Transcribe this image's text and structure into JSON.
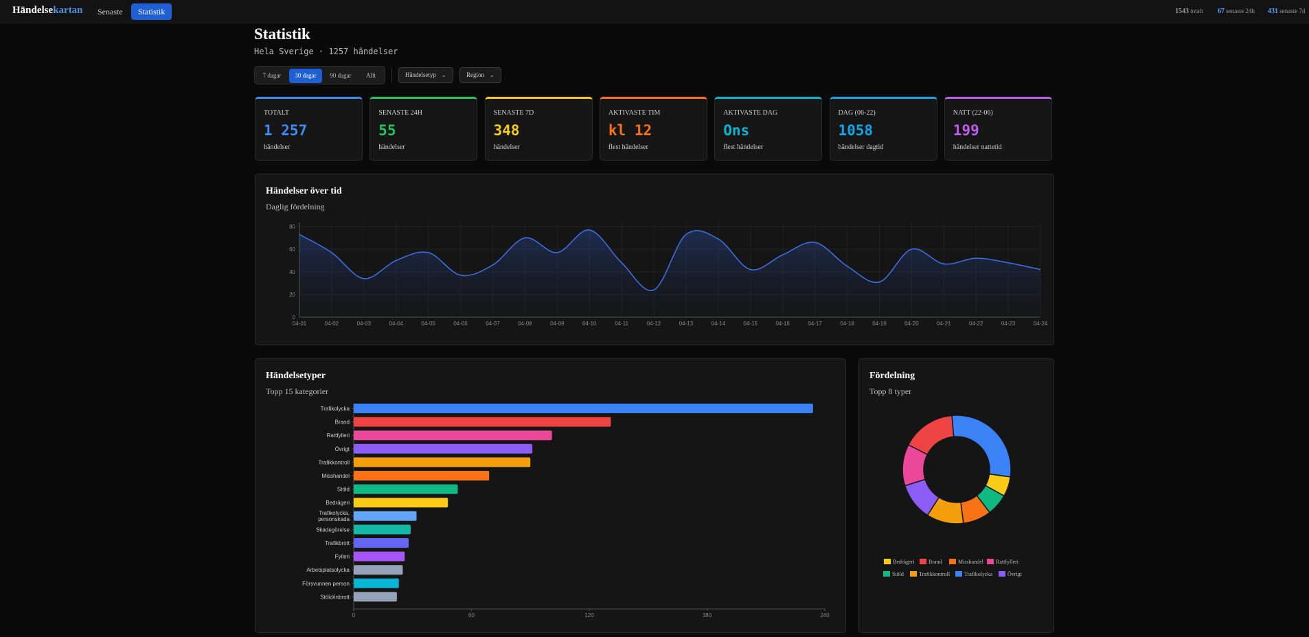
{
  "brand": {
    "part1": "Händelse",
    "part2": "kartan"
  },
  "nav": {
    "recent": "Senaste",
    "stats": "Statistik"
  },
  "topstats": [
    {
      "value": "1543",
      "label": "totalt",
      "color": "#ffffff"
    },
    {
      "value": "67",
      "label": "senaste 24h",
      "color": "#5aa2ff"
    },
    {
      "value": "431",
      "label": "senaste 7d",
      "color": "#5aa2ff"
    }
  ],
  "page": {
    "title": "Statistik",
    "subtitle": "Hela Sverige · 1257 händelser"
  },
  "filters": {
    "periods": [
      "7 dagar",
      "30 dagar",
      "90 dagar",
      "Allt"
    ],
    "active_period": "30 dagar",
    "type_dropdown": "Händelsetyp",
    "region_dropdown": "Region"
  },
  "cards": [
    {
      "label": "TOTALT",
      "value": "1 257",
      "sub": "händelser",
      "color": "#3b8cf5"
    },
    {
      "label": "SENASTE 24H",
      "value": "55",
      "sub": "händelser",
      "color": "#22c55e"
    },
    {
      "label": "SENASTE 7D",
      "value": "348",
      "sub": "händelser",
      "color": "#facc15"
    },
    {
      "label": "AKTIVASTE TIM",
      "value": "kl 12",
      "sub": "flest händelser",
      "color": "#f97316"
    },
    {
      "label": "AKTIVASTE DAG",
      "value": "Ons",
      "sub": "flest händelser",
      "color": "#06b6d4"
    },
    {
      "label": "DAG (06-22)",
      "value": "1058",
      "sub": "händelser dagtid",
      "color": "#0ea5e9"
    },
    {
      "label": "NATT (22-06)",
      "value": "199",
      "sub": "händelser nattetid",
      "color": "#c05cf0"
    }
  ],
  "timeline": {
    "title": "Händelser över tid",
    "subtitle": "Daglig fördelning"
  },
  "types": {
    "title": "Händelsetyper",
    "subtitle": "Topp 15 kategorier"
  },
  "distribution": {
    "title": "Fördelning",
    "subtitle": "Topp 8 typer"
  },
  "chart_data": [
    {
      "type": "area",
      "x": [
        "04-01",
        "04-02",
        "04-03",
        "04-04",
        "04-05",
        "04-06",
        "04-07",
        "04-08",
        "04-09",
        "04-10",
        "04-11",
        "04-12",
        "04-13",
        "04-14",
        "04-15",
        "04-16",
        "04-17",
        "04-18",
        "04-19",
        "04-20",
        "04-21",
        "04-22",
        "04-23",
        "04-24"
      ],
      "values": [
        73,
        57,
        34,
        50,
        57,
        37,
        46,
        70,
        57,
        77,
        48,
        24,
        73,
        69,
        42,
        55,
        66,
        45,
        31,
        60,
        47,
        52,
        48,
        42
      ],
      "ylim": [
        0,
        80
      ],
      "yticks": [
        0,
        20,
        40,
        60,
        80
      ],
      "color": "#3b6fe0",
      "grid": true
    },
    {
      "type": "bar",
      "orientation": "horizontal",
      "categories": [
        "Trafikolycka",
        "Brand",
        "Rattfylleri",
        "Övrigt",
        "Trafikkontroll",
        "Misshandel",
        "Stöld",
        "Bedrägeri",
        "Trafikolycka, personskada",
        "Skadegörelse",
        "Trafikbrott",
        "Fylleri",
        "Arbetsplatsolycka",
        "Försvunnen person",
        "Stöld/inbrott"
      ],
      "values": [
        234,
        131,
        101,
        91,
        90,
        69,
        53,
        48,
        32,
        29,
        28,
        26,
        25,
        23,
        22
      ],
      "colors": [
        "#3b82f6",
        "#ef4444",
        "#ec4899",
        "#8b5cf6",
        "#f59e0b",
        "#f97316",
        "#10b981",
        "#facc15",
        "#60a5fa",
        "#14b8a6",
        "#6366f1",
        "#a855f7",
        "#94a3b8",
        "#06b6d4",
        "#94a3b8"
      ],
      "xlim": [
        0,
        240
      ],
      "xticks": [
        0,
        60,
        120,
        180,
        240
      ]
    },
    {
      "type": "pie",
      "labels": [
        "Trafikolycka",
        "Bedrägeri",
        "Stöld",
        "Misshandel",
        "Trafikkontroll",
        "Övrigt",
        "Rattfylleri",
        "Brand"
      ],
      "values": [
        234,
        48,
        53,
        69,
        90,
        91,
        101,
        131
      ],
      "colors": [
        "#3b82f6",
        "#facc15",
        "#10b981",
        "#f97316",
        "#f59e0b",
        "#8b5cf6",
        "#ec4899",
        "#ef4444"
      ],
      "legend": [
        {
          "label": "Bedrägeri",
          "color": "#facc15"
        },
        {
          "label": "Brand",
          "color": "#ef4444"
        },
        {
          "label": "Misshandel",
          "color": "#f97316"
        },
        {
          "label": "Rattfylleri",
          "color": "#ec4899"
        },
        {
          "label": "Stöld",
          "color": "#10b981"
        },
        {
          "label": "Trafikkontroll",
          "color": "#f59e0b"
        },
        {
          "label": "Trafikolycka",
          "color": "#3b82f6"
        },
        {
          "label": "Övrigt",
          "color": "#8b5cf6"
        }
      ],
      "legend_position": "bottom"
    }
  ]
}
